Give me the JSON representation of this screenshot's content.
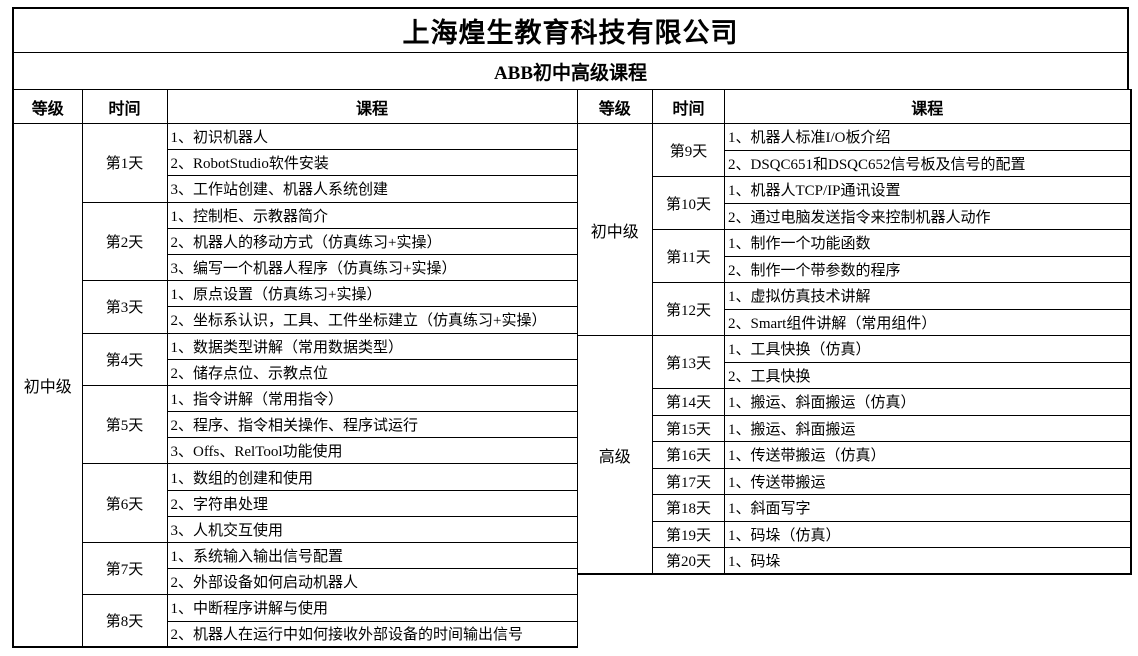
{
  "colors": {
    "border": "#000000",
    "background": "#ffffff",
    "text": "#000000"
  },
  "header": {
    "company": "上海煌生教育科技有限公司",
    "course_title": "ABB初中高级课程"
  },
  "columns": {
    "level": "等级",
    "time": "时间",
    "course": "课程"
  },
  "left_table": {
    "sections": [
      {
        "level": "初中级",
        "days": [
          {
            "day": "第1天",
            "items": [
              "1、初识机器人",
              "2、RobotStudio软件安装",
              "3、工作站创建、机器人系统创建"
            ]
          },
          {
            "day": "第2天",
            "items": [
              "1、控制柜、示教器简介",
              "2、机器人的移动方式（仿真练习+实操）",
              "3、编写一个机器人程序（仿真练习+实操）"
            ]
          },
          {
            "day": "第3天",
            "items": [
              "1、原点设置（仿真练习+实操）",
              "2、坐标系认识，工具、工件坐标建立（仿真练习+实操）"
            ]
          },
          {
            "day": "第4天",
            "items": [
              "1、数据类型讲解（常用数据类型）",
              "2、储存点位、示教点位"
            ]
          },
          {
            "day": "第5天",
            "items": [
              "1、指令讲解（常用指令）",
              "2、程序、指令相关操作、程序试运行",
              "3、Offs、RelTool功能使用"
            ]
          },
          {
            "day": "第6天",
            "items": [
              "1、数组的创建和使用",
              "2、字符串处理",
              "3、人机交互使用"
            ]
          },
          {
            "day": "第7天",
            "items": [
              "1、系统输入输出信号配置",
              "2、外部设备如何启动机器人"
            ]
          },
          {
            "day": "第8天",
            "items": [
              "1、中断程序讲解与使用",
              "2、机器人在运行中如何接收外部设备的时间输出信号"
            ]
          }
        ]
      }
    ]
  },
  "right_table": {
    "sections": [
      {
        "level": "初中级",
        "days": [
          {
            "day": "第9天",
            "items": [
              "1、机器人标准I/O板介绍",
              "2、DSQC651和DSQC652信号板及信号的配置"
            ]
          },
          {
            "day": "第10天",
            "items": [
              "1、机器人TCP/IP通讯设置",
              "2、通过电脑发送指令来控制机器人动作"
            ]
          },
          {
            "day": "第11天",
            "items": [
              "1、制作一个功能函数",
              "2、制作一个带参数的程序"
            ]
          },
          {
            "day": "第12天",
            "items": [
              "1、虚拟仿真技术讲解",
              "2、Smart组件讲解（常用组件）"
            ]
          }
        ]
      },
      {
        "level": "高级",
        "days": [
          {
            "day": "第13天",
            "items": [
              "1、工具快换（仿真）",
              "2、工具快换"
            ]
          },
          {
            "day": "第14天",
            "items": [
              "1、搬运、斜面搬运（仿真）"
            ]
          },
          {
            "day": "第15天",
            "items": [
              "1、搬运、斜面搬运"
            ]
          },
          {
            "day": "第16天",
            "items": [
              "1、传送带搬运（仿真）"
            ]
          },
          {
            "day": "第17天",
            "items": [
              "1、传送带搬运"
            ]
          },
          {
            "day": "第18天",
            "items": [
              "1、斜面写字"
            ]
          },
          {
            "day": "第19天",
            "items": [
              "1、码垛（仿真）"
            ]
          },
          {
            "day": "第20天",
            "items": [
              "1、码垛"
            ]
          }
        ]
      }
    ]
  }
}
